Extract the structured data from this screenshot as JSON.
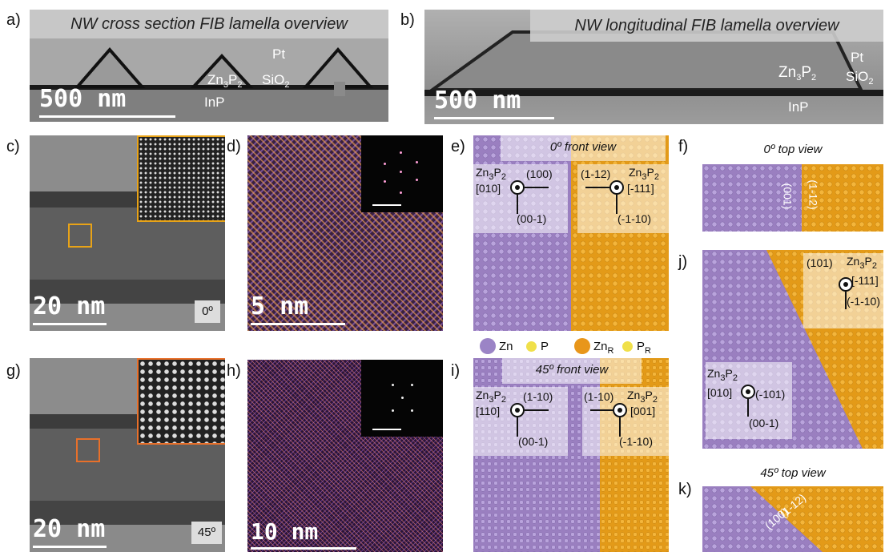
{
  "panel_labels": [
    "a)",
    "b)",
    "c)",
    "d)",
    "e)",
    "f)",
    "g)",
    "h)",
    "i)",
    "j)",
    "k)"
  ],
  "a": {
    "title": "NW cross section FIB lamella overview",
    "scale": "500 nm",
    "labels": {
      "pt": "Pt",
      "zn3p2": "Zn",
      "zn3p2_sub": "3",
      "zn3p2_p": "P",
      "zn3p2_p_sub": "2",
      "sio2": "SiO",
      "sio2_sub": "2",
      "inp": "InP"
    }
  },
  "b": {
    "title": "NW longitudinal FIB lamella overview",
    "scale": "500 nm",
    "labels": {
      "pt": "Pt",
      "zn3p2": "Zn",
      "zn3p2_sub": "3",
      "zn3p2_p": "P",
      "zn3p2_p_sub": "2",
      "sio2": "SiO",
      "sio2_sub": "2",
      "inp": "InP"
    }
  },
  "c": {
    "scale": "20 nm",
    "angle": "0º"
  },
  "d": {
    "scale": "5 nm"
  },
  "g": {
    "scale": "20 nm",
    "angle": "45º"
  },
  "h": {
    "scale": "10 nm"
  },
  "e": {
    "title": "0º front view",
    "left": {
      "name": "Zn",
      "sub1": "3",
      "name2": "P",
      "sub2": "2",
      "zone": "[010]",
      "h": "(100)",
      "v": "(00-1)"
    },
    "right": {
      "name": "Zn",
      "sub1": "3",
      "name2": "P",
      "sub2": "2",
      "zone": "[-111]",
      "h": "(1-12)",
      "v": "(-1-10)"
    }
  },
  "i": {
    "title": "45º front view",
    "left": {
      "name": "Zn",
      "sub1": "3",
      "name2": "P",
      "sub2": "2",
      "zone": "[110]",
      "h": "(1-10)",
      "v": "(00-1)"
    },
    "right": {
      "name": "Zn",
      "sub1": "3",
      "name2": "P",
      "sub2": "2",
      "zone": "[001]",
      "h": "(1-10)",
      "v": "(-1-10)"
    }
  },
  "f": {
    "title": "0º top view",
    "left_plane": "(001)",
    "right_plane": "(1-12)"
  },
  "j": {
    "upper": {
      "name": "Zn",
      "sub1": "3",
      "name2": "P",
      "sub2": "2",
      "zone": "[-111]",
      "h": "(101)",
      "v": "(-1-10)"
    },
    "lower": {
      "name": "Zn",
      "sub1": "3",
      "name2": "P",
      "sub2": "2",
      "zone": "[010]",
      "h": "(-101)",
      "v": "(00-1)"
    }
  },
  "k": {
    "title": "45º top view",
    "left_plane": "(100)",
    "right_plane": "(1-12)"
  },
  "legend": [
    {
      "label": "Zn",
      "sub": "",
      "color": "#9b84c6"
    },
    {
      "label": "P",
      "sub": "",
      "color": "#f0e04a"
    },
    {
      "label": "Zn",
      "sub": "R",
      "color": "#e8961a"
    },
    {
      "label": "P",
      "sub": "R",
      "color": "#f0e04a"
    }
  ],
  "colors": {
    "zn": "#9b84c6",
    "zn_r": "#e8961a",
    "p": "#f0e04a",
    "box_c": "#e8a317",
    "box_g": "#e8702a"
  }
}
